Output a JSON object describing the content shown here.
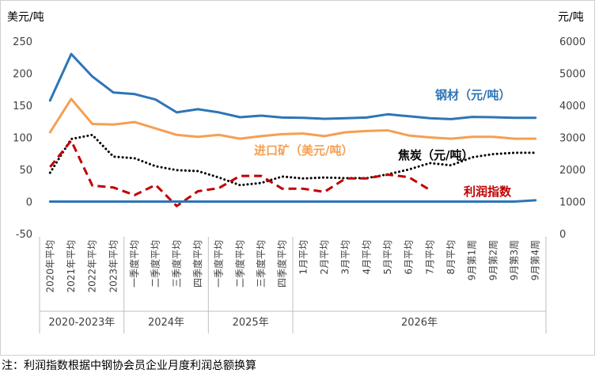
{
  "chart_data": {
    "type": "line",
    "left_axis_unit": "美元/吨",
    "right_axis_unit": "元/吨",
    "left_axis": {
      "min": -50,
      "max": 250,
      "ticks": [
        -50,
        0,
        50,
        100,
        150,
        200,
        250
      ]
    },
    "right_axis": {
      "min": 0,
      "max": 6000,
      "ticks": [
        0,
        1000,
        2000,
        3000,
        4000,
        5000,
        6000
      ]
    },
    "categories": [
      "2020年平均",
      "2021年平均",
      "2022年平均",
      "2023年平均",
      "一季度平均",
      "二季度平均",
      "三季度平均",
      "四季度平均",
      "一季度平均",
      "二季度平均",
      "三季度平均",
      "四季度平均",
      "1月平均",
      "2月平均",
      "3月平均",
      "4月平均",
      "5月平均",
      "6月平均",
      "7月平均",
      "8月平均",
      "9月第1周",
      "9月第2周",
      "9月第3周",
      "9月第4周"
    ],
    "groups": [
      {
        "label": "2020-2023年",
        "count": 4
      },
      {
        "label": "2024年",
        "count": 4
      },
      {
        "label": "2025年",
        "count": 4
      },
      {
        "label": "2026年",
        "count": 12
      }
    ],
    "series": [
      {
        "name": "钢材（元/吨）",
        "axis": "right",
        "color": "#2e75b6",
        "style": "solid",
        "values": [
          4150,
          5600,
          4900,
          4400,
          4350,
          4180,
          3780,
          3880,
          3780,
          3630,
          3680,
          3620,
          3610,
          3580,
          3600,
          3620,
          3720,
          3660,
          3600,
          3570,
          3640,
          3630,
          3610,
          3610
        ]
      },
      {
        "name": "进口矿（美元/吨）",
        "axis": "left",
        "color": "#f4a052",
        "style": "solid",
        "values": [
          108,
          160,
          121,
          120,
          124,
          114,
          104,
          101,
          104,
          98,
          102,
          105,
          106,
          102,
          108,
          110,
          111,
          103,
          100,
          98,
          101,
          101,
          98,
          98
        ]
      },
      {
        "name": "焦炭（元/吨）",
        "axis": "right",
        "color": "#000000",
        "style": "dotted",
        "values": [
          1900,
          2950,
          3080,
          2400,
          2350,
          2100,
          1980,
          1950,
          1750,
          1510,
          1580,
          1780,
          1720,
          1750,
          1730,
          1730,
          1850,
          2000,
          2200,
          2130,
          2380,
          2480,
          2520,
          2520
        ]
      },
      {
        "name": "利润指数",
        "axis": "left",
        "color": "#c00000",
        "style": "dashed",
        "values": [
          54,
          95,
          25,
          22,
          10,
          26,
          -7,
          16,
          21,
          40,
          40,
          20,
          20,
          15,
          36,
          36,
          42,
          38,
          18,
          null,
          null,
          null,
          null,
          null
        ]
      },
      {
        "name": "",
        "axis": "left",
        "color": "#2e75b6",
        "style": "solid-zero",
        "values": [
          0,
          0,
          0,
          0,
          0,
          0,
          0,
          0,
          0,
          0,
          0,
          0,
          0,
          0,
          0,
          0,
          0,
          0,
          0,
          0,
          0,
          0,
          0,
          2
        ]
      }
    ],
    "series_labels": [
      {
        "text": "钢材（元/吨）",
        "color": "#2e75b6"
      },
      {
        "text": "进口矿（美元/吨）",
        "color": "#f4a052"
      },
      {
        "text": "焦炭（元/吨）",
        "color": "#000000"
      },
      {
        "text": "利润指数",
        "color": "#c00000"
      }
    ]
  },
  "footnote": "注：利润指数根据中钢协会员企业月度利润总额换算"
}
